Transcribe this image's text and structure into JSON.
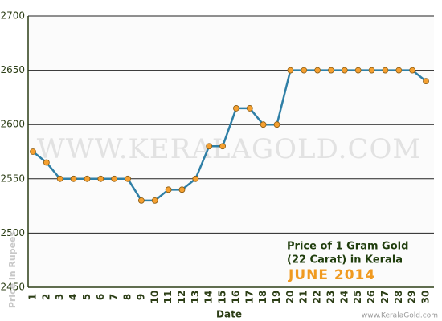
{
  "chart_data": {
    "type": "line",
    "title": "Price of 1 Gram Gold",
    "subtitle": "(22 Carat) in Kerala",
    "period": "JUNE 2014",
    "x_label": "Date",
    "y_label": "Price in Rupees",
    "watermark": "WWW.KERALAGOLD.COM",
    "source": "www.KeralaGold.com",
    "categories": [
      "1",
      "2",
      "3",
      "4",
      "5",
      "6",
      "7",
      "8",
      "9",
      "10",
      "11",
      "12",
      "13",
      "14",
      "15",
      "16",
      "17",
      "18",
      "19",
      "20",
      "21",
      "22",
      "23",
      "24",
      "25",
      "26",
      "27",
      "28",
      "29",
      "30"
    ],
    "series": [
      {
        "name": "Price",
        "color": "#2f7fa6",
        "values": [
          2575,
          2565,
          2550,
          2550,
          2550,
          2550,
          2550,
          2550,
          2530,
          2530,
          2540,
          2540,
          2550,
          2580,
          2580,
          2615,
          2615,
          2600,
          2600,
          2650,
          2650,
          2650,
          2650,
          2650,
          2650,
          2650,
          2650,
          2650,
          2650,
          2640
        ]
      }
    ],
    "marker_color": "#f5a030",
    "ylim": [
      2450,
      2700
    ],
    "yticks": [
      2450,
      2500,
      2550,
      2600,
      2650,
      2700
    ],
    "grid": true
  }
}
